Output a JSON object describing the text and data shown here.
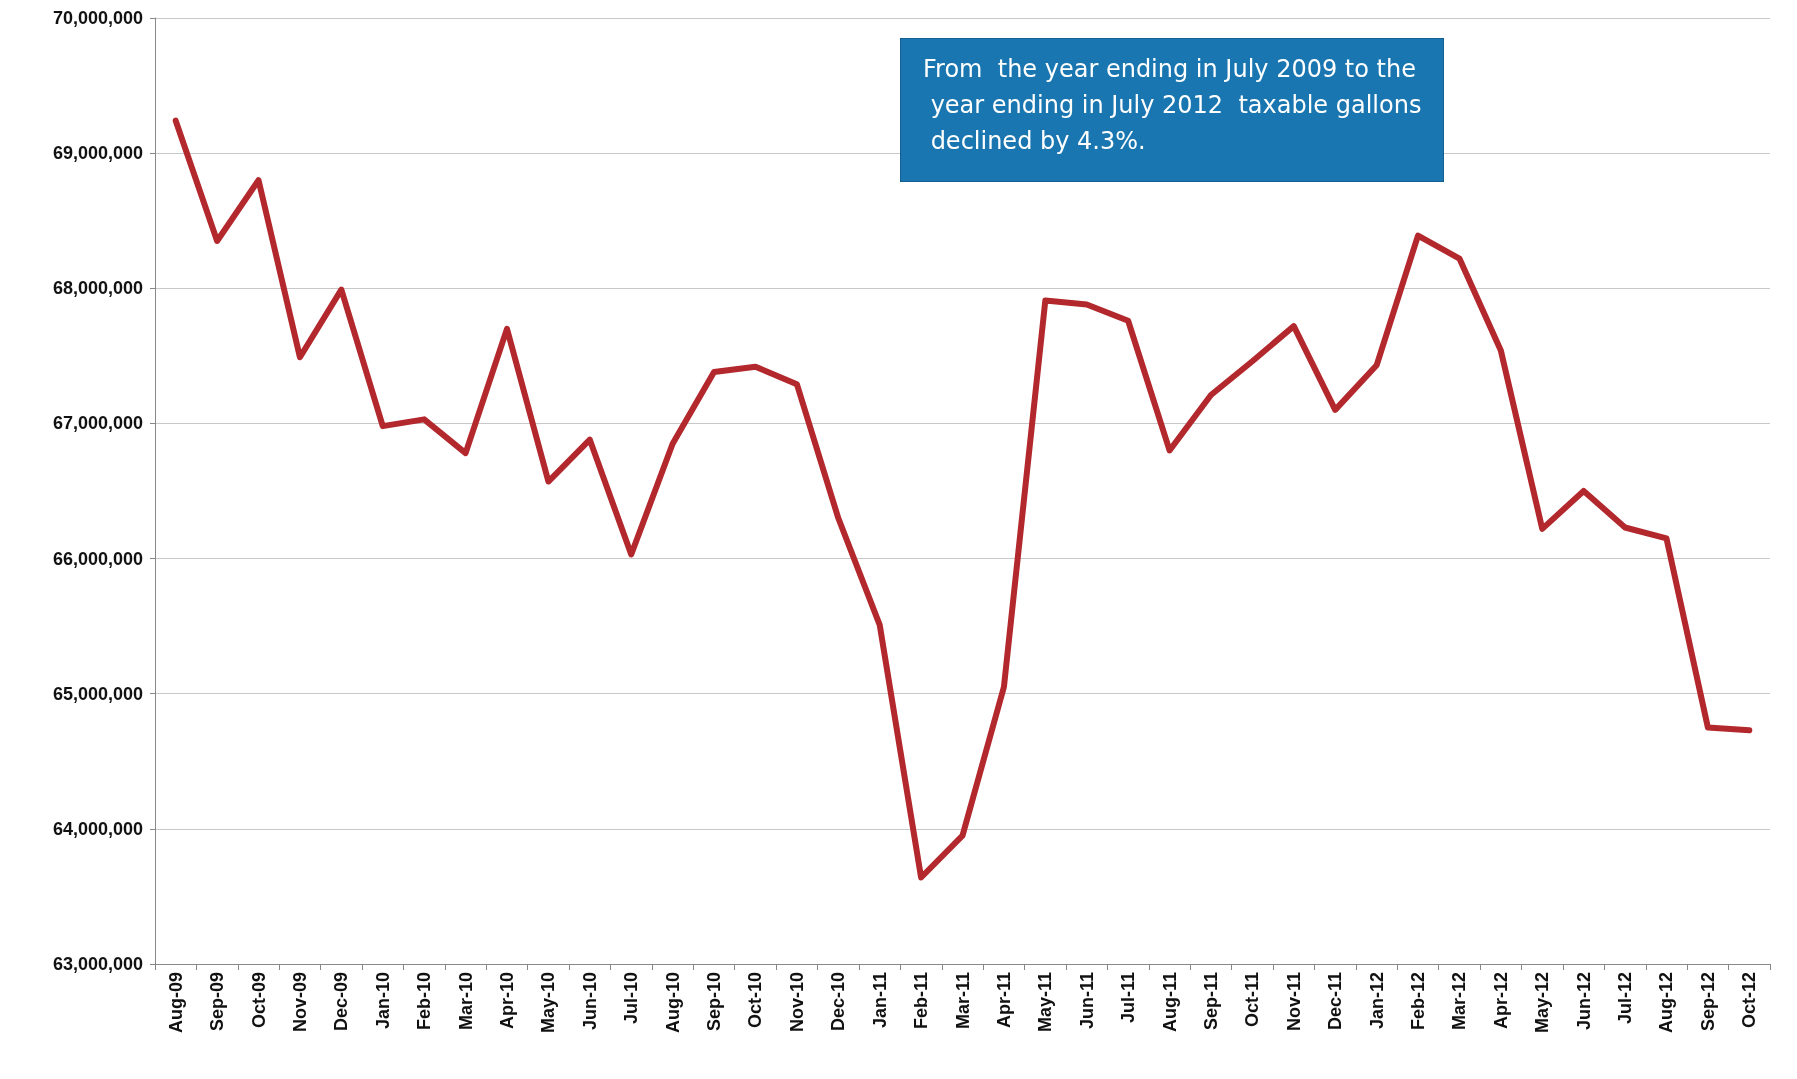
{
  "chart_data": {
    "type": "line",
    "categories": [
      "Aug-09",
      "Sep-09",
      "Oct-09",
      "Nov-09",
      "Dec-09",
      "Jan-10",
      "Feb-10",
      "Mar-10",
      "Apr-10",
      "May-10",
      "Jun-10",
      "Jul-10",
      "Aug-10",
      "Sep-10",
      "Oct-10",
      "Nov-10",
      "Dec-10",
      "Jan-11",
      "Feb-11",
      "Mar-11",
      "Apr-11",
      "May-11",
      "Jun-11",
      "Jul-11",
      "Aug-11",
      "Sep-11",
      "Oct-11",
      "Nov-11",
      "Dec-11",
      "Jan-12",
      "Feb-12",
      "Mar-12",
      "Apr-12",
      "May-12",
      "Jun-12",
      "Jul-12",
      "Aug-12",
      "Sep-12",
      "Oct-12"
    ],
    "series": [
      {
        "color": "#b3282d",
        "values": [
          69240000,
          68350000,
          68800000,
          67490000,
          67990000,
          66980000,
          67030000,
          66780000,
          67700000,
          66570000,
          66880000,
          66030000,
          66850000,
          67380000,
          67420000,
          67290000,
          66300000,
          65510000,
          63640000,
          63950000,
          65050000,
          67910000,
          67880000,
          67760000,
          66800000,
          67210000,
          67460000,
          67720000,
          67100000,
          67430000,
          68390000,
          68220000,
          67540000,
          66220000,
          66500000,
          66230000,
          66150000,
          64750000,
          64730000
        ]
      }
    ],
    "ylim": [
      63000000,
      70000000
    ],
    "yticks": [
      {
        "value": 63000000,
        "label": "63,000,000"
      },
      {
        "value": 64000000,
        "label": "64,000,000"
      },
      {
        "value": 65000000,
        "label": "65,000,000"
      },
      {
        "value": 66000000,
        "label": "66,000,000"
      },
      {
        "value": 67000000,
        "label": "67,000,000"
      },
      {
        "value": 68000000,
        "label": "68,000,000"
      },
      {
        "value": 69000000,
        "label": "69,000,000"
      },
      {
        "value": 70000000,
        "label": "70,000,000"
      }
    ],
    "grid": "y",
    "marker": "none",
    "line_style": "solid",
    "annotations": [
      "From  the year ending in July 2009 to the year ending in July 2012  taxable gallons declined by 4.3%."
    ]
  }
}
